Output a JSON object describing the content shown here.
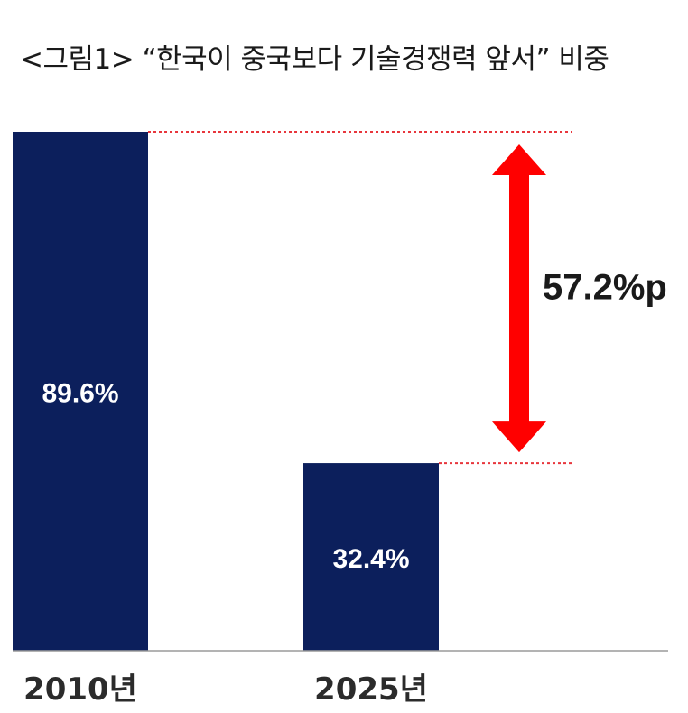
{
  "chart_data": {
    "type": "bar",
    "title": "<그림1> “한국이 중국보다 기술경쟁력 앞서” 비중",
    "categories": [
      "2010년",
      "2025년"
    ],
    "values": [
      89.6,
      32.4
    ],
    "value_labels": [
      "89.6%",
      "32.4%"
    ],
    "ylim": [
      0,
      89.6
    ],
    "grid": false,
    "annotations": [
      {
        "text": "57.2%p",
        "from": 32.4,
        "to": 89.6,
        "color": "#ff0000"
      }
    ],
    "colors": {
      "bar": "#0c1f5c",
      "arrow": "#ff0000",
      "guide": "#e8363c"
    }
  }
}
